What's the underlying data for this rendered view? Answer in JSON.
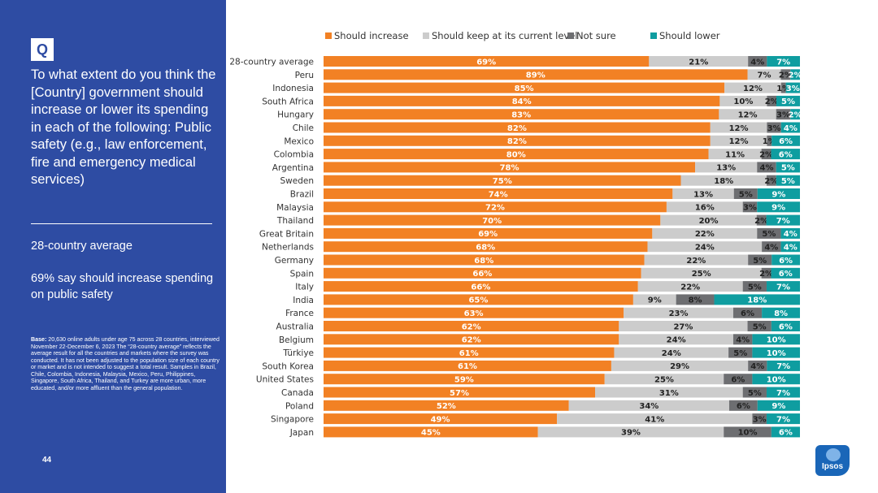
{
  "sidebar": {
    "badge": "Q",
    "question": "To what extent do you think the [Country] government should increase or lower its spending in each of the following: Public safety (e.g., law enforcement, fire and emergency medical services)",
    "avg_title": "28-country average",
    "avg_text": "69% say should increase spending on public safety",
    "base_label": "Base:",
    "base_text": " 20,630 online adults under age 75 across 28 countries, interviewed November 22-December 6, 2023 The “28-country average” reflects the average result for all the countries and markets where the survey was conducted. It has not been adjusted to the population size of each country or market and is not intended to suggest a total result. Samples in Brazil, Chile, Colombia, Indonesia, Malaysia, Mexico, Peru, Philippines, Singapore, South Africa, Thailand, and Turkey are more urban, more educated, and/or more affluent than the general population.",
    "page_number": "44"
  },
  "logo": {
    "text": "Ipsos"
  },
  "colors": {
    "sidebar_bg": "#2e4ca3",
    "increase": "#f28124",
    "keep": "#cccccc",
    "not_sure": "#6d6e71",
    "lower": "#0f9da0"
  },
  "chart_data": {
    "type": "bar",
    "orientation": "horizontal",
    "stacked": true,
    "normalized_to": 100,
    "categories": [
      "28-country average",
      "Peru",
      "Indonesia",
      "South Africa",
      "Hungary",
      "Chile",
      "Mexico",
      "Colombia",
      "Argentina",
      "Sweden",
      "Brazil",
      "Malaysia",
      "Thailand",
      "Great Britain",
      "Netherlands",
      "Germany",
      "Spain",
      "Italy",
      "India",
      "France",
      "Australia",
      "Belgium",
      "Türkiye",
      "South Korea",
      "United States",
      "Canada",
      "Poland",
      "Singapore",
      "Japan"
    ],
    "series": [
      {
        "name": "Should increase",
        "color": "#f28124",
        "values": [
          69,
          89,
          85,
          84,
          83,
          82,
          82,
          80,
          78,
          75,
          74,
          72,
          70,
          69,
          68,
          68,
          66,
          66,
          65,
          63,
          62,
          62,
          61,
          61,
          59,
          57,
          52,
          49,
          45
        ]
      },
      {
        "name": "Should keep at its current level",
        "color": "#cccccc",
        "values": [
          21,
          7,
          12,
          10,
          12,
          12,
          12,
          11,
          13,
          18,
          13,
          16,
          20,
          22,
          24,
          22,
          25,
          22,
          9,
          23,
          27,
          24,
          24,
          29,
          25,
          31,
          34,
          41,
          39
        ]
      },
      {
        "name": "Not sure",
        "color": "#6d6e71",
        "values": [
          4,
          2,
          1,
          2,
          3,
          3,
          1,
          2,
          4,
          2,
          5,
          3,
          2,
          5,
          4,
          5,
          2,
          5,
          8,
          6,
          5,
          4,
          5,
          4,
          6,
          5,
          6,
          3,
          10
        ]
      },
      {
        "name": "Should lower",
        "color": "#0f9da0",
        "values": [
          7,
          2,
          3,
          5,
          2,
          4,
          6,
          6,
          5,
          5,
          9,
          9,
          7,
          4,
          4,
          6,
          6,
          7,
          18,
          8,
          6,
          10,
          10,
          7,
          10,
          7,
          9,
          7,
          6
        ]
      }
    ],
    "value_suffix": "%",
    "legend_position": "top",
    "grid": false
  }
}
